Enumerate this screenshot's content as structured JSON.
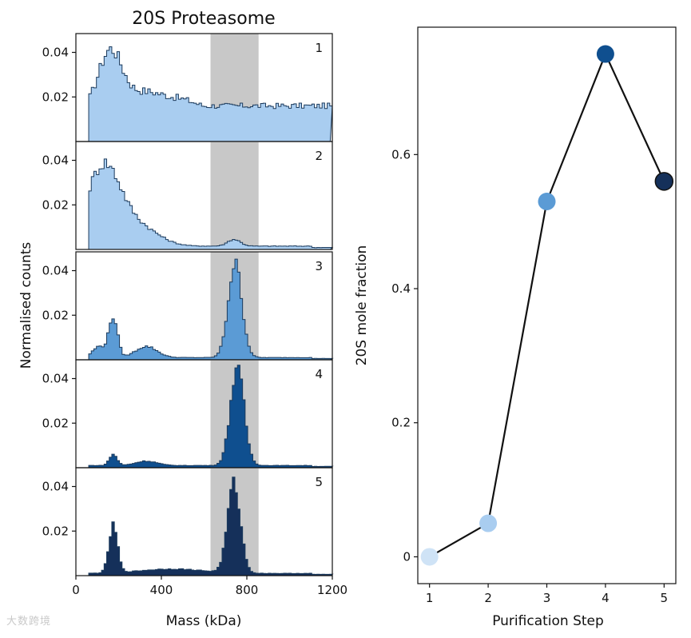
{
  "colors": {
    "panel_fills": [
      "#a9cdf0",
      "#a9cdf0",
      "#5b9bd5",
      "#0f4f8f",
      "#15305a"
    ],
    "shade": "#c8c8c8",
    "point_colors": [
      "#cfe3f6",
      "#a9cdf0",
      "#5b9bd5",
      "#0f4f8f",
      "#15305a"
    ]
  },
  "watermark": "大数跨境",
  "chart_data": [
    {
      "type": "histogram",
      "title": "20S Proteasome",
      "xlabel": "Mass (kDa)",
      "ylabel": "Normalised counts",
      "xlim": [
        0,
        1200
      ],
      "ylim": [
        0,
        0.047
      ],
      "x_ticks": [
        0,
        400,
        800,
        1200
      ],
      "y_ticks": [
        0.02,
        0.04
      ],
      "shaded_region": [
        630,
        855
      ],
      "panels": [
        {
          "label": "1",
          "peaks": [
            {
              "center": 160,
              "height": 0.026,
              "width": 55
            },
            {
              "center": 320,
              "height": 0.008,
              "width": 90
            },
            {
              "center": 500,
              "height": 0.004,
              "width": 80
            }
          ],
          "baseline": 0.014
        },
        {
          "label": "2",
          "peaks": [
            {
              "center": 130,
              "height": 0.036,
              "width": 80
            },
            {
              "center": 300,
              "height": 0.008,
              "width": 90
            },
            {
              "center": 740,
              "height": 0.003,
              "width": 30
            }
          ],
          "baseline": 0.0015
        },
        {
          "label": "3",
          "peaks": [
            {
              "center": 175,
              "height": 0.018,
              "width": 20
            },
            {
              "center": 110,
              "height": 0.005,
              "width": 30
            },
            {
              "center": 330,
              "height": 0.005,
              "width": 50
            },
            {
              "center": 745,
              "height": 0.042,
              "width": 32
            }
          ],
          "baseline": 0.001
        },
        {
          "label": "4",
          "peaks": [
            {
              "center": 175,
              "height": 0.005,
              "width": 18
            },
            {
              "center": 330,
              "height": 0.002,
              "width": 50
            },
            {
              "center": 755,
              "height": 0.044,
              "width": 32
            }
          ],
          "baseline": 0.001
        },
        {
          "label": "5",
          "peaks": [
            {
              "center": 175,
              "height": 0.021,
              "width": 20
            },
            {
              "center": 740,
              "height": 0.04,
              "width": 30
            },
            {
              "center": 450,
              "height": 0.002,
              "width": 150
            }
          ],
          "baseline": 0.001
        }
      ]
    },
    {
      "type": "line",
      "title": "",
      "xlabel": "Purification Step",
      "ylabel": "20S mole fraction",
      "x": [
        1,
        2,
        3,
        4,
        5
      ],
      "y": [
        0.0,
        0.05,
        0.53,
        0.75,
        0.56
      ],
      "xlim": [
        0.8,
        5.2
      ],
      "ylim": [
        -0.04,
        0.79
      ],
      "x_ticks": [
        1,
        2,
        3,
        4,
        5
      ],
      "y_ticks": [
        0,
        0.2,
        0.4,
        0.6
      ]
    }
  ]
}
